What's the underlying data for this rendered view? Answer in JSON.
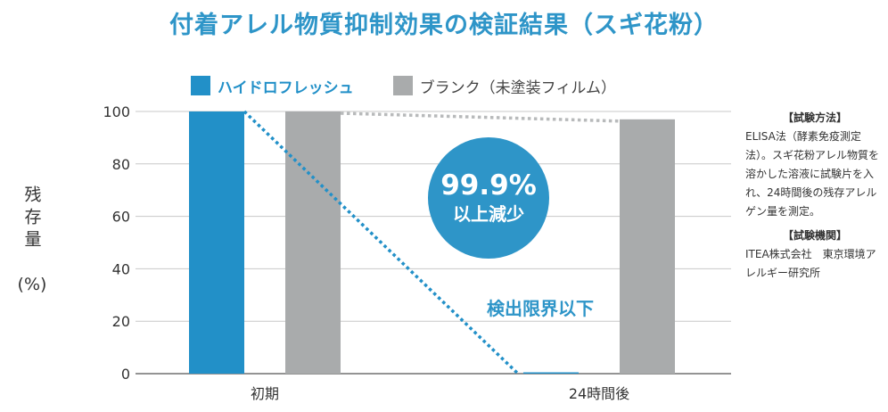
{
  "title": "付着アレル物質抑制効果の検証結果（スギ花粉）",
  "legend": [
    {
      "label": "ハイドロフレッシュ",
      "color": "#2290c8"
    },
    {
      "label": "ブランク（未塗装フィルム）",
      "color": "#a9abac"
    }
  ],
  "ylabel": {
    "text": "残存量",
    "unit": "(%)"
  },
  "badge": {
    "percent": "99.9%",
    "text": "以上減少"
  },
  "limit_label": "検出限界以下",
  "note": {
    "method_heading": "【試験方法】",
    "method_text": "ELISA法（酵素免疫測定法）。スギ花粉アレル物質を溶かした溶液に試験片を入れ、24時間後の残存アレルゲン量を測定。",
    "agency_heading": "【試験機関】",
    "agency_text": "ITEA株式会社　東京環境アレルギー研究所"
  },
  "colors": {
    "accent": "#2e95c8",
    "gridline": "#c8c8c8",
    "axis": "#707070"
  },
  "chart_data": {
    "type": "bar",
    "title": "付着アレル物質抑制効果の検証結果（スギ花粉）",
    "ylabel": "残存量 (%)",
    "ylim": [
      0,
      100
    ],
    "yticks": [
      0,
      20,
      40,
      60,
      80,
      100
    ],
    "grid": true,
    "legend_position": "top",
    "categories": [
      "初期",
      "24時間後"
    ],
    "series": [
      {
        "name": "ハイドロフレッシュ",
        "values": [
          100,
          0.1
        ],
        "color": "#2290c8"
      },
      {
        "name": "ブランク（未塗装フィルム）",
        "values": [
          100,
          97
        ],
        "color": "#a9abac"
      }
    ]
  }
}
